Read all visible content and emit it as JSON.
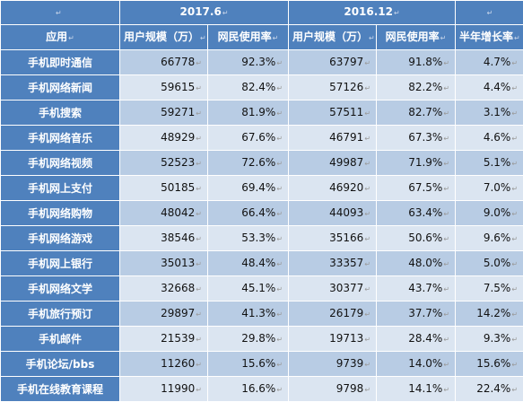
{
  "para_mark": "↵",
  "header_row1": {
    "period_1": "2017.6",
    "period_2": "2016.12"
  },
  "header_row2": {
    "app": "应用",
    "users_1": "用户规模（万）",
    "rate_1": "网民使用率",
    "users_2": "用户规模（万）",
    "rate_2": "网民使用率",
    "growth": "半年增长率"
  },
  "rows": [
    {
      "app": "手机即时通信",
      "users_1": "66778",
      "rate_1": "92.3%",
      "users_2": "63797",
      "rate_2": "91.8%",
      "growth": "4.7%"
    },
    {
      "app": "手机网络新闻",
      "users_1": "59615",
      "rate_1": "82.4%",
      "users_2": "57126",
      "rate_2": "82.2%",
      "growth": "4.4%"
    },
    {
      "app": "手机搜索",
      "users_1": "59271",
      "rate_1": "81.9%",
      "users_2": "57511",
      "rate_2": "82.7%",
      "growth": "3.1%"
    },
    {
      "app": "手机网络音乐",
      "users_1": "48929",
      "rate_1": "67.6%",
      "users_2": "46791",
      "rate_2": "67.3%",
      "growth": "4.6%"
    },
    {
      "app": "手机网络视频",
      "users_1": "52523",
      "rate_1": "72.6%",
      "users_2": "49987",
      "rate_2": "71.9%",
      "growth": "5.1%"
    },
    {
      "app": "手机网上支付",
      "users_1": "50185",
      "rate_1": "69.4%",
      "users_2": "46920",
      "rate_2": "67.5%",
      "growth": "7.0%"
    },
    {
      "app": "手机网络购物",
      "users_1": "48042",
      "rate_1": "66.4%",
      "users_2": "44093",
      "rate_2": "63.4%",
      "growth": "9.0%"
    },
    {
      "app": "手机网络游戏",
      "users_1": "38546",
      "rate_1": "53.3%",
      "users_2": "35166",
      "rate_2": "50.6%",
      "growth": "9.6%"
    },
    {
      "app": "手机网上银行",
      "users_1": "35013",
      "rate_1": "48.4%",
      "users_2": "33357",
      "rate_2": "48.0%",
      "growth": "5.0%"
    },
    {
      "app": "手机网络文学",
      "users_1": "32668",
      "rate_1": "45.1%",
      "users_2": "30377",
      "rate_2": "43.7%",
      "growth": "7.5%"
    },
    {
      "app": "手机旅行预订",
      "users_1": "29897",
      "rate_1": "41.3%",
      "users_2": "26179",
      "rate_2": "37.7%",
      "growth": "14.2%"
    },
    {
      "app": "手机邮件",
      "users_1": "21539",
      "rate_1": "29.8%",
      "users_2": "19713",
      "rate_2": "28.4%",
      "growth": "9.3%"
    },
    {
      "app": "手机论坛/bbs",
      "users_1": "11260",
      "rate_1": "15.6%",
      "users_2": "9739",
      "rate_2": "14.0%",
      "growth": "15.6%"
    },
    {
      "app": "手机在线教育课程",
      "users_1": "11990",
      "rate_1": "16.6%",
      "users_2": "9798",
      "rate_2": "14.1%",
      "growth": "22.4%"
    }
  ]
}
